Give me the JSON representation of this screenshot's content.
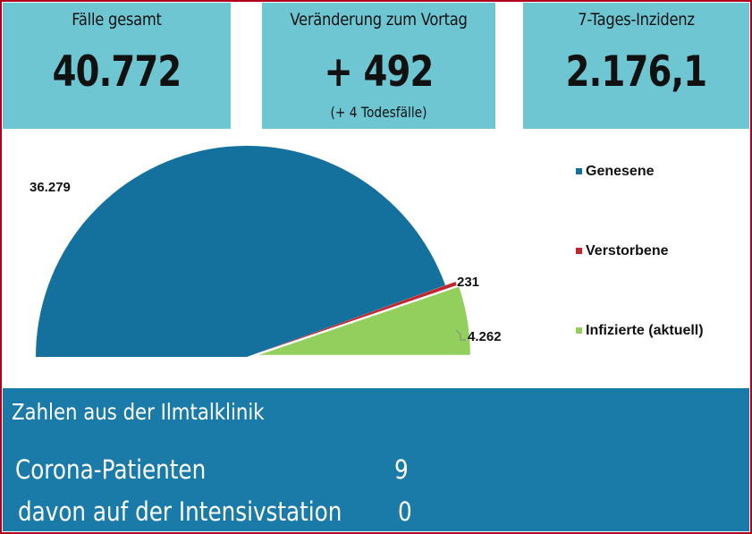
{
  "tiles": [
    {
      "label": "Fälle gesamt",
      "value": "40.772"
    },
    {
      "label": "Veränderung zum Vortag",
      "value": "+ 492",
      "sub": "(+ 4 Todesfälle)"
    },
    {
      "label": "7-Tages-Inzidenz",
      "value": "2.176,1"
    }
  ],
  "chart_data": {
    "type": "pie",
    "title": "",
    "categories": [
      "Genesene",
      "Verstorbene",
      "Infizierte (aktuell)"
    ],
    "values": [
      36279,
      231,
      4262
    ],
    "data_labels": [
      "36.279",
      "231",
      "4.262"
    ],
    "colors": [
      "#14719e",
      "#c0262c",
      "#92cf5c"
    ],
    "legend_position": "right",
    "shape": "half-pie (upper semicircle)"
  },
  "clinic": {
    "heading": "Zahlen aus der Ilmtalklinik",
    "rows": [
      {
        "label": "Corona-Patienten",
        "value": "9"
      },
      {
        "label": "davon auf der Intensivstation",
        "value": "0"
      }
    ]
  },
  "colors": {
    "tile_bg": "#6ec6d2",
    "panel_bg": "#1a7ba9",
    "border": "#b0001e"
  }
}
